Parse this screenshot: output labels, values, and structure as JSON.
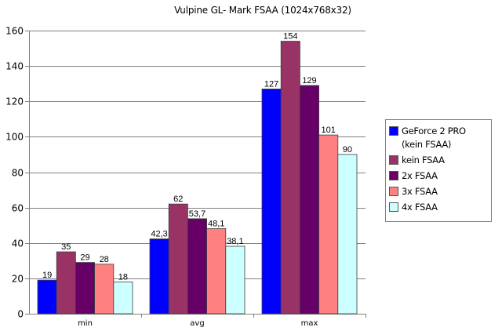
{
  "chart_data": {
    "type": "bar",
    "title": "Vulpine GL- Mark FSAA (1024x768x32)",
    "xlabel": "",
    "ylabel": "",
    "categories": [
      "min",
      "avg",
      "max"
    ],
    "ylim": [
      0,
      160
    ],
    "yticks": [
      0,
      20,
      40,
      60,
      80,
      100,
      120,
      140,
      160
    ],
    "grid": true,
    "legend_position": "right",
    "series": [
      {
        "name": "GeForce 2 PRO (kein FSAA)",
        "color": "#0000FF",
        "values": [
          19,
          42.3,
          127
        ],
        "labels": [
          "19",
          "42,3",
          "127"
        ]
      },
      {
        "name": "kein FSAA",
        "color": "#993366",
        "values": [
          35,
          62,
          154
        ],
        "labels": [
          "35",
          "62",
          "154"
        ]
      },
      {
        "name": "2x FSAA",
        "color": "#660066",
        "values": [
          29,
          53.7,
          129
        ],
        "labels": [
          "29",
          "53,7",
          "129"
        ]
      },
      {
        "name": "3x FSAA",
        "color": "#FF8080",
        "values": [
          28,
          48.1,
          101
        ],
        "labels": [
          "28",
          "48,1",
          "101"
        ]
      },
      {
        "name": "4x FSAA",
        "color": "#CCFFFF",
        "values": [
          18,
          38.1,
          90
        ],
        "labels": [
          "18",
          "38,1",
          "90"
        ]
      }
    ]
  }
}
